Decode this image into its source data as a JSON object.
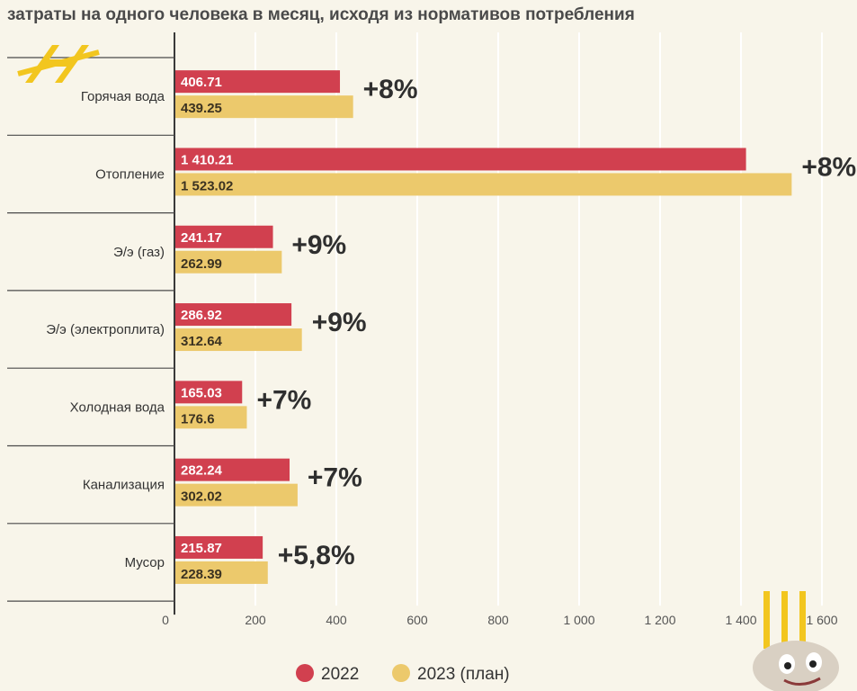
{
  "chart_data": {
    "type": "bar",
    "orientation": "horizontal",
    "title": "затраты на одного человека в месяц, исходя из нормативов потребления",
    "categories": [
      "Горячая вода",
      "Отопление",
      "Э/э (газ)",
      "Э/э (электроплита)",
      "Холодная вода",
      "Канализация",
      "Мусор"
    ],
    "series": [
      {
        "name": "2022",
        "values": [
          406.71,
          1410.21,
          241.17,
          286.92,
          165.03,
          282.24,
          215.87
        ],
        "labels": [
          "406.71",
          "1 410.21",
          "241.17",
          "286.92",
          "165.03",
          "282.24",
          "215.87"
        ],
        "color": "#d1404f"
      },
      {
        "name": "2023 (план)",
        "values": [
          439.25,
          1523.02,
          262.99,
          312.64,
          176.6,
          302.02,
          228.39
        ],
        "labels": [
          "439.25",
          "1 523.02",
          "262.99",
          "312.64",
          "176.6",
          "302.02",
          "228.39"
        ],
        "color": "#ecc96c"
      }
    ],
    "change_labels": [
      "+8%",
      "+8%",
      "+9%",
      "+9%",
      "+7%",
      "+7%",
      "+5,8%"
    ],
    "xlim": [
      0,
      1600
    ],
    "xticks": [
      "0",
      "200",
      "400",
      "600",
      "800",
      "1 000",
      "1 200",
      "1 400",
      "1 600"
    ],
    "grid": true,
    "legend": "bottom-center"
  }
}
